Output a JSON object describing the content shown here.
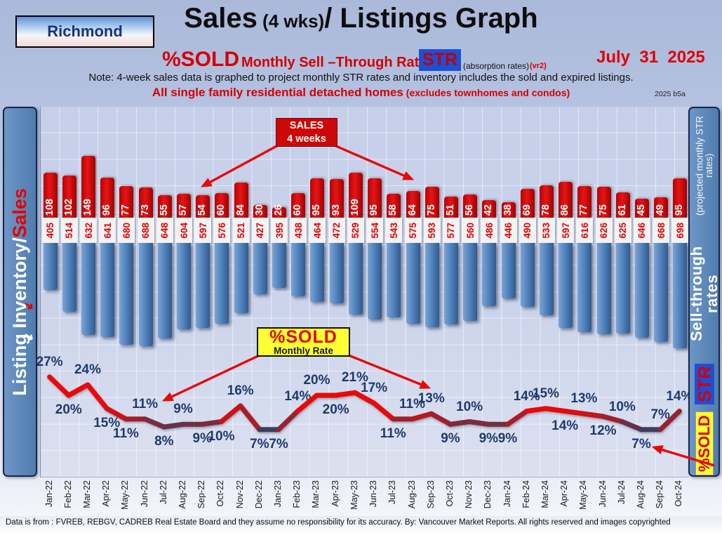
{
  "header": {
    "region": "Richmond",
    "title": {
      "part1": "Sales",
      "part2": " (4 wks)",
      "part3": "/ Listings Graph"
    },
    "subtitle": {
      "sold": "%SOLD",
      "rates": "Monthly Sell –Through Rates",
      "str": "STR",
      "absorption": "(absorption rates)",
      "vr": "(vr2)"
    },
    "date": "July  31  2025",
    "note": "Note: 4-week sales data is graphed to project monthly STR rates and inventory includes the sold and expired listings.",
    "subject": "All single family residential detached homes",
    "subject_sub": " (excludes townhomes and condos)",
    "version": "2025 b5a"
  },
  "left_axis": {
    "inventory": "Listing Inventory",
    "slash": " / ",
    "sales": "Sales",
    "arrow_glyph": "➜"
  },
  "right_axis": {
    "sold_tag": "%SOLD",
    "str_tag": "STR",
    "label": "Sell-through rates",
    "sub": "(projected monthly STR rates)"
  },
  "annotations": {
    "sales_box": {
      "line1": "SALES",
      "line2": "4  weeks"
    },
    "sold_box": {
      "line1": "%SOLD",
      "line2": "Monthly Rate"
    }
  },
  "footer": "Data is from : FVREB, REBGV, CADREB Real Estate Board and they assume no responsibility for its accuracy. By: Vancouver Market Reports. All rights reserved and  images copyrighted",
  "chart_data": {
    "type": "bar",
    "title": "Sales (4 wks)/ Listings Graph — Richmond",
    "xlabel": "Month",
    "ylabel": "Listing Inventory / Sales; Sell-through rate %",
    "legend_position": "annotation-boxes",
    "grid": true,
    "categories": [
      "Jan-22",
      "Feb-22",
      "Mar-22",
      "Apr-22",
      "May-22",
      "Jun-22",
      "Jul-22",
      "Aug-22",
      "Sep-22",
      "Oct-22",
      "Nov-22",
      "Dec-22",
      "Jan-23",
      "Feb-23",
      "Mar-23",
      "Apr-23",
      "May-23",
      "Jun-23",
      "Jul-23",
      "Aug-23",
      "Sep-23",
      "Oct-23",
      "Nov-23",
      "Dec-23",
      "Jan-24",
      "Feb-24",
      "Mar-24",
      "Apr-24",
      "May-24",
      "Jun-24",
      "Jul-24",
      "Aug-24",
      "Sep-24",
      "Oct-24"
    ],
    "series": [
      {
        "name": "Sales 4 weeks",
        "type": "bar",
        "color": "#cc0909",
        "values": [
          108,
          102,
          149,
          96,
          77,
          73,
          55,
          57,
          54,
          60,
          84,
          30,
          26,
          60,
          95,
          93,
          109,
          95,
          58,
          64,
          75,
          51,
          56,
          42,
          38,
          69,
          78,
          86,
          77,
          75,
          61,
          45,
          49,
          95
        ]
      },
      {
        "name": "Listing Inventory",
        "type": "bar",
        "color": "#4f81bd",
        "values": [
          405,
          514,
          632,
          641,
          680,
          688,
          648,
          604,
          597,
          576,
          521,
          427,
          395,
          438,
          464,
          472,
          529,
          554,
          543,
          575,
          593,
          577,
          560,
          486,
          446,
          490,
          533,
          597,
          616,
          626,
          625,
          646,
          668,
          698
        ]
      },
      {
        "name": "%SOLD Monthly Rate",
        "type": "line",
        "unit": "%",
        "color_high": "#e80808",
        "color_low": "#3e3e5c",
        "values": [
          27,
          20,
          24,
          15,
          11,
          11,
          8,
          9,
          9,
          10,
          16,
          7,
          7,
          14,
          20,
          20,
          21,
          17,
          11,
          11,
          13,
          9,
          10,
          9,
          9,
          14,
          15,
          14,
          13,
          12,
          10,
          7,
          7,
          14
        ],
        "label_positions": [
          "above",
          "below",
          "above",
          "below",
          "below",
          "above",
          "below",
          "above",
          "below",
          "below",
          "above",
          "below",
          "below",
          "above",
          "above",
          "below",
          "above",
          "above",
          "below",
          "above",
          "above",
          "below",
          "above",
          "below",
          "below",
          "above",
          "above",
          "below",
          "above",
          "below",
          "above",
          "below",
          "above",
          "above"
        ]
      }
    ],
    "colors": {
      "pct_label": "#1e3a6e",
      "sales_value_text": "#ffffff",
      "inventory_value_text": "#e00000"
    }
  }
}
